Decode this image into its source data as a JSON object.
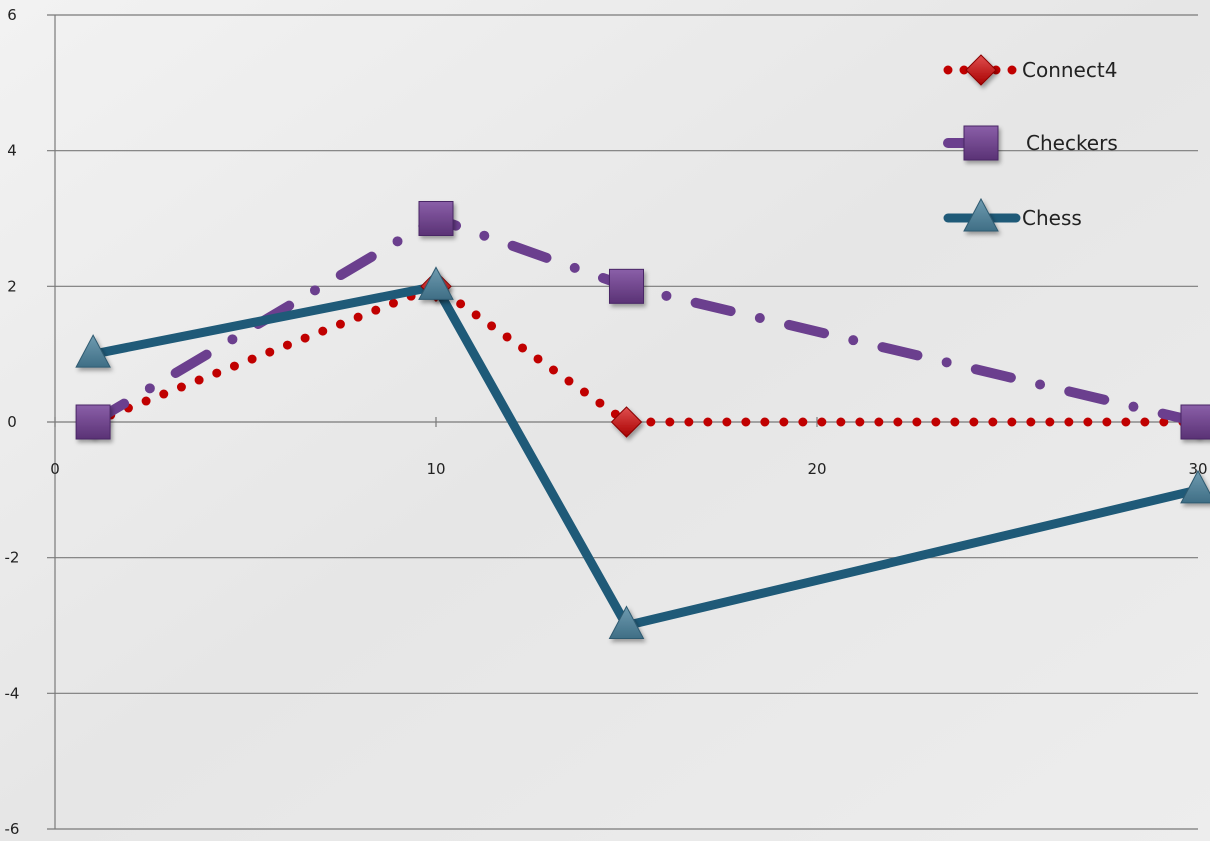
{
  "chart_data": {
    "type": "line",
    "title": "",
    "xlabel": "",
    "ylabel": "",
    "xlim": [
      0,
      30
    ],
    "ylim": [
      -6,
      6
    ],
    "x_ticks": [
      0,
      10,
      20,
      30
    ],
    "x_tick_labels": [
      "0",
      "10",
      "20",
      "30"
    ],
    "y_ticks": [
      -6,
      -4,
      -2,
      0,
      2,
      4,
      6
    ],
    "y_tick_labels": [
      "-6",
      "-4",
      "-2",
      "0",
      "2",
      "4",
      "6"
    ],
    "grid": "horizontal",
    "legend_position": "top-right",
    "series": [
      {
        "name": "Connect4",
        "x": [
          1,
          10,
          15,
          30
        ],
        "y": [
          0,
          2,
          0,
          0
        ],
        "color": "#c00000",
        "line_style": "dotted",
        "marker": "diamond"
      },
      {
        "name": "Checkers",
        "x": [
          1,
          10,
          15,
          30
        ],
        "y": [
          0,
          3,
          2,
          0
        ],
        "color": "#6b3f8e",
        "line_style": "dash-dot",
        "marker": "square"
      },
      {
        "name": "Chess",
        "x": [
          1,
          10,
          15,
          30
        ],
        "y": [
          1,
          2,
          -3,
          -1
        ],
        "color": "#1f5a78",
        "line_style": "solid",
        "marker": "triangle"
      }
    ]
  }
}
